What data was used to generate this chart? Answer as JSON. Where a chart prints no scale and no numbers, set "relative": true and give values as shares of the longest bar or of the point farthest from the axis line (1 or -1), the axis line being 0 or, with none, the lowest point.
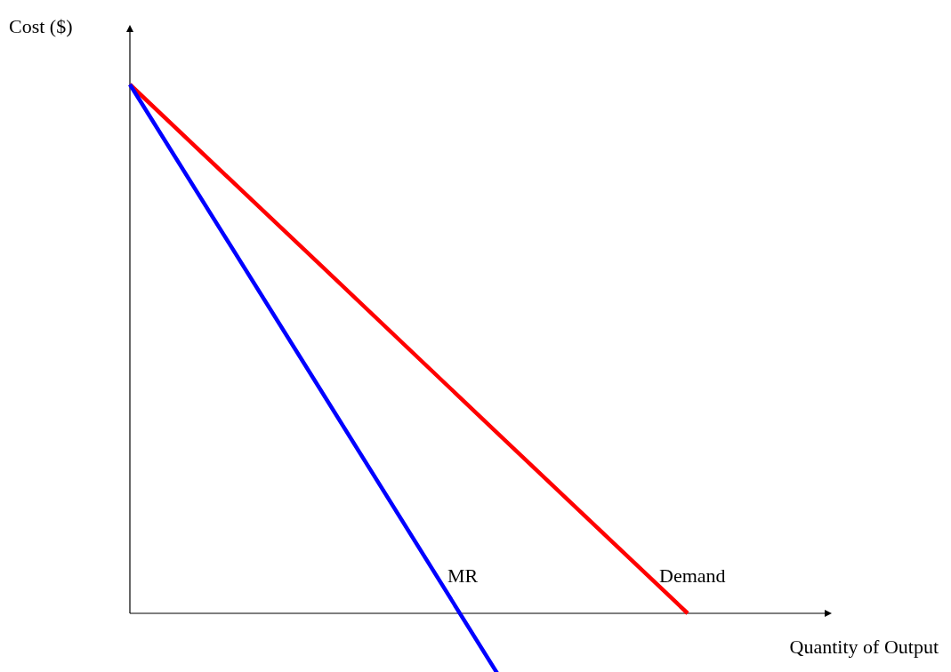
{
  "chart_data": {
    "type": "line",
    "relative": true,
    "xlabel": "Quantity of Output",
    "ylabel": "Cost ($)",
    "categories": [
      null,
      null,
      null,
      null
    ],
    "series": [
      {
        "name": "Demand",
        "color": "#ff0000",
        "values": [
          1,
          0.667,
          0.333,
          0
        ]
      },
      {
        "name": "MR",
        "color": "#0000ff",
        "values": [
          1,
          0.437,
          -0.127,
          null
        ]
      }
    ]
  }
}
